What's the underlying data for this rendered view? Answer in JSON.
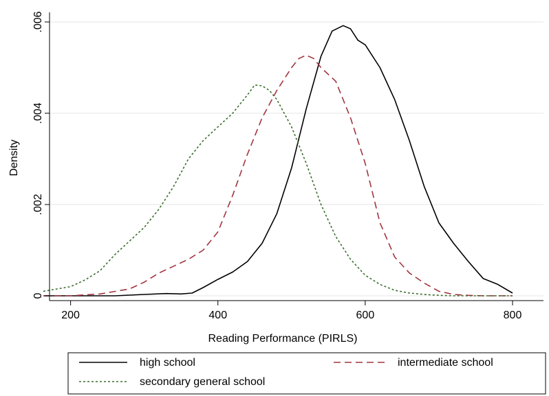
{
  "chart_data": {
    "type": "line",
    "title": "",
    "xlabel": "Reading Performance (PIRLS)",
    "ylabel": "Density",
    "xlim": [
      163,
      800
    ],
    "ylim": [
      0,
      0.006
    ],
    "x_ticks": [
      200,
      400,
      600,
      800
    ],
    "x_tick_labels": [
      "200",
      "400",
      "600",
      "800"
    ],
    "y_ticks": [
      0,
      0.002,
      0.004,
      0.006
    ],
    "y_tick_labels": [
      "0",
      ".002",
      ".004",
      ".006"
    ],
    "grid": true,
    "legend_position": "bottom",
    "series": [
      {
        "name": "high school",
        "color": "#000000",
        "dash": "solid",
        "x": [
          163,
          200,
          260,
          300,
          330,
          350,
          365,
          380,
          400,
          420,
          440,
          460,
          480,
          500,
          520,
          540,
          555,
          570,
          580,
          590,
          600,
          620,
          640,
          660,
          680,
          700,
          720,
          740,
          760,
          780,
          800
        ],
        "y": [
          0,
          0,
          0,
          3e-05,
          5e-05,
          4e-05,
          6e-05,
          0.00018,
          0.00036,
          0.00052,
          0.00075,
          0.00115,
          0.0018,
          0.0028,
          0.0041,
          0.00525,
          0.0058,
          0.00592,
          0.00585,
          0.0056,
          0.0055,
          0.005,
          0.0043,
          0.0034,
          0.0024,
          0.0016,
          0.00115,
          0.00075,
          0.00038,
          0.00025,
          6e-05
        ]
      },
      {
        "name": "intermediate school",
        "color": "#a0343f",
        "dash": "dashed",
        "x": [
          163,
          200,
          240,
          280,
          300,
          320,
          340,
          360,
          380,
          400,
          420,
          440,
          460,
          480,
          500,
          510,
          520,
          530,
          540,
          560,
          580,
          600,
          620,
          640,
          660,
          680,
          700,
          720,
          740,
          760,
          780,
          800
        ],
        "y": [
          0,
          0,
          4e-05,
          0.00015,
          0.0003,
          0.0005,
          0.00065,
          0.0008,
          0.001,
          0.0014,
          0.0022,
          0.0031,
          0.0039,
          0.0045,
          0.005,
          0.0052,
          0.00527,
          0.0052,
          0.005,
          0.0047,
          0.0039,
          0.0029,
          0.0016,
          0.00085,
          0.0005,
          0.00028,
          0.0001,
          3e-05,
          1e-05,
          0,
          0,
          0
        ]
      },
      {
        "name": "secondary general school",
        "color": "#3a6e2c",
        "dash": "dotted",
        "x": [
          163,
          200,
          220,
          240,
          260,
          280,
          300,
          320,
          340,
          360,
          380,
          400,
          420,
          440,
          450,
          460,
          470,
          480,
          500,
          520,
          540,
          560,
          580,
          600,
          620,
          640,
          660,
          680,
          700,
          720,
          740,
          760,
          780,
          800
        ],
        "y": [
          0.0001,
          0.0002,
          0.00035,
          0.00055,
          0.0009,
          0.0012,
          0.0015,
          0.0019,
          0.0024,
          0.003,
          0.0034,
          0.0037,
          0.004,
          0.0044,
          0.00462,
          0.0046,
          0.0045,
          0.0043,
          0.0037,
          0.0029,
          0.002,
          0.0013,
          0.0008,
          0.00045,
          0.00025,
          0.00012,
          6e-05,
          3e-05,
          1e-05,
          0,
          0,
          0,
          0,
          0
        ]
      }
    ]
  }
}
